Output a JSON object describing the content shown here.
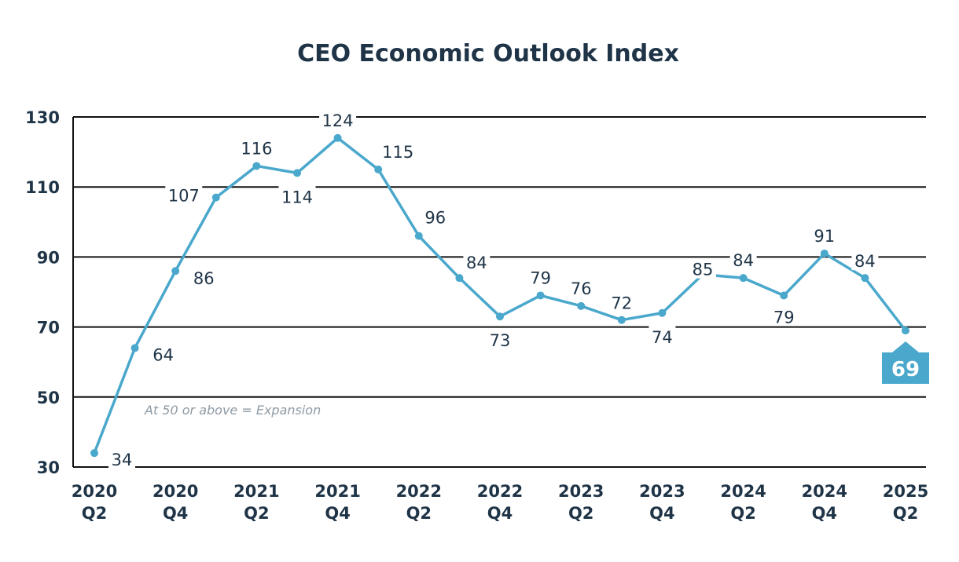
{
  "chart_data": {
    "type": "line",
    "title": "CEO Economic Outlook Index",
    "xlabel": "",
    "ylabel": "",
    "ylim": [
      30,
      130
    ],
    "yticks": [
      30,
      50,
      70,
      90,
      110,
      130
    ],
    "grid": true,
    "x": [
      "2020 Q2",
      "2020 Q3",
      "2020 Q4",
      "2021 Q1",
      "2021 Q2",
      "2021 Q3",
      "2021 Q4",
      "2022 Q1",
      "2022 Q2",
      "2022 Q3",
      "2022 Q4",
      "2023 Q1",
      "2023 Q2",
      "2023 Q3",
      "2023 Q4",
      "2024 Q1",
      "2024 Q2",
      "2024 Q3",
      "2024 Q4",
      "2025 Q1",
      "2025 Q2"
    ],
    "xtick_labels": [
      {
        "year": "2020",
        "q": "Q2"
      },
      {
        "year": "2020",
        "q": "Q4"
      },
      {
        "year": "2021",
        "q": "Q2"
      },
      {
        "year": "2021",
        "q": "Q4"
      },
      {
        "year": "2022",
        "q": "Q2"
      },
      {
        "year": "2022",
        "q": "Q4"
      },
      {
        "year": "2023",
        "q": "Q2"
      },
      {
        "year": "2023",
        "q": "Q4"
      },
      {
        "year": "2024",
        "q": "Q2"
      },
      {
        "year": "2024",
        "q": "Q4"
      },
      {
        "year": "2025",
        "q": "Q2"
      }
    ],
    "values": [
      34,
      64,
      86,
      107,
      116,
      114,
      124,
      115,
      96,
      84,
      73,
      79,
      76,
      72,
      74,
      85,
      84,
      79,
      91,
      84,
      69
    ],
    "annotation": "At 50 or above = Expansion",
    "highlight_value": "69",
    "colors": {
      "line": "#4aa8cc",
      "callout": "#4aa8cc",
      "text": "#1f3447",
      "grid": "#111111",
      "note": "#8f9aa3"
    }
  }
}
